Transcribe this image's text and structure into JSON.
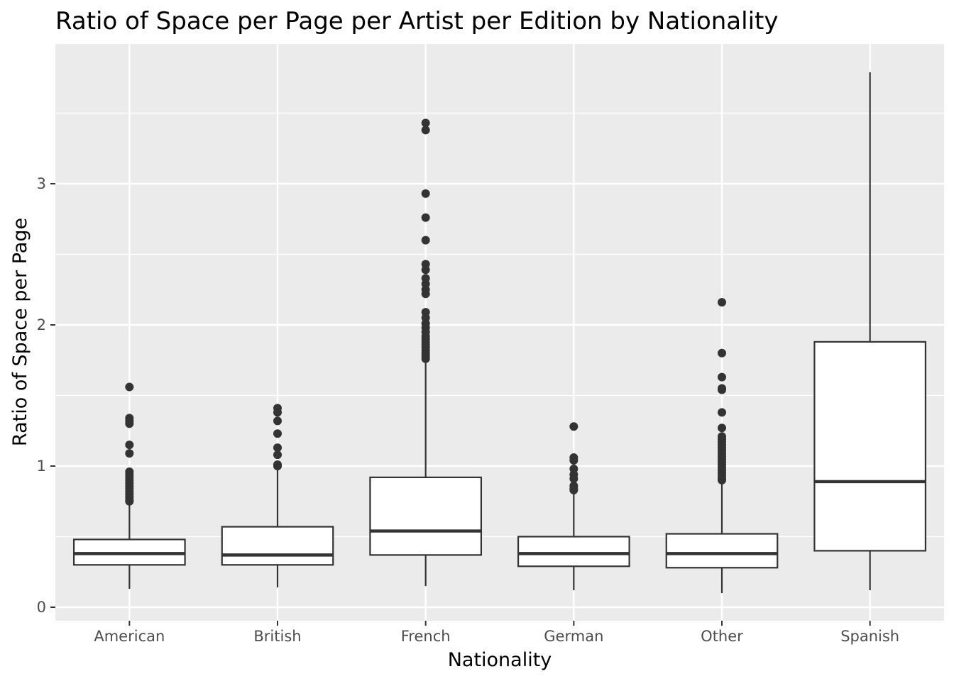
{
  "chart_data": {
    "type": "boxplot",
    "title": "Ratio of Space per Page per Artist per Edition by Nationality",
    "xlabel": "Nationality",
    "ylabel": "Ratio of Space per Page",
    "ylim": [
      -0.09,
      4.07
    ],
    "yticks": [
      0,
      1,
      2,
      3
    ],
    "ytick_labels": [
      "0",
      "1",
      "2",
      "3"
    ],
    "grid": true,
    "colors": {
      "panel_bg": "#ebebeb",
      "grid": "#ffffff",
      "box_fill": "#ffffff",
      "box_stroke": "#333333",
      "outlier": "#333333",
      "tick_text": "#4d4d4d"
    },
    "categories": [
      "American",
      "British",
      "French",
      "German",
      "Other",
      "Spanish"
    ],
    "boxes": [
      {
        "name": "American",
        "whisker_low": 0.13,
        "q1": 0.3,
        "median": 0.38,
        "q3": 0.48,
        "whisker_high": 0.74,
        "outliers": [
          1.56,
          1.34,
          1.32,
          1.3,
          1.15,
          1.09,
          0.96,
          0.94,
          0.92,
          0.9,
          0.88,
          0.86,
          0.84,
          0.82,
          0.8,
          0.78,
          0.76,
          0.75
        ]
      },
      {
        "name": "British",
        "whisker_low": 0.14,
        "q1": 0.3,
        "median": 0.37,
        "q3": 0.57,
        "whisker_high": 0.99,
        "outliers": [
          1.41,
          1.38,
          1.32,
          1.23,
          1.13,
          1.08,
          1.01,
          1.0
        ]
      },
      {
        "name": "French",
        "whisker_low": 0.15,
        "q1": 0.37,
        "median": 0.54,
        "q3": 0.92,
        "whisker_high": 1.74,
        "outliers": [
          3.43,
          3.38,
          2.93,
          2.76,
          2.6,
          2.43,
          2.39,
          2.33,
          2.29,
          2.25,
          2.22,
          2.09,
          2.05,
          2.01,
          1.98,
          1.95,
          1.92,
          1.9,
          1.88,
          1.86,
          1.84,
          1.82,
          1.8,
          1.78,
          1.76
        ]
      },
      {
        "name": "German",
        "whisker_low": 0.12,
        "q1": 0.29,
        "median": 0.38,
        "q3": 0.5,
        "whisker_high": 0.82,
        "outliers": [
          1.28,
          1.06,
          1.04,
          0.98,
          0.94,
          0.91,
          0.86,
          0.84,
          0.83
        ]
      },
      {
        "name": "Other",
        "whisker_low": 0.1,
        "q1": 0.28,
        "median": 0.38,
        "q3": 0.52,
        "whisker_high": 0.89,
        "outliers": [
          2.16,
          1.8,
          1.63,
          1.55,
          1.54,
          1.38,
          1.27,
          1.21,
          1.19,
          1.17,
          1.15,
          1.13,
          1.11,
          1.09,
          1.07,
          1.05,
          1.03,
          1.01,
          0.99,
          0.97,
          0.95,
          0.93,
          0.91,
          0.9
        ]
      },
      {
        "name": "Spanish",
        "whisker_low": 0.12,
        "q1": 0.4,
        "median": 0.89,
        "q3": 1.88,
        "whisker_high": 3.79,
        "outliers": []
      }
    ]
  }
}
